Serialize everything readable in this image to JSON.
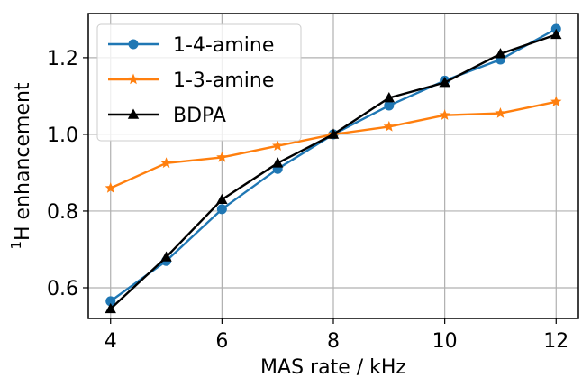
{
  "chart_data": {
    "type": "line",
    "xlabel": "MAS rate / kHz",
    "ylabel_sup": "1",
    "ylabel": "H enhancement",
    "xlim": [
      3.6,
      12.4
    ],
    "ylim": [
      0.52,
      1.315
    ],
    "xticks": [
      4,
      6,
      8,
      10,
      12
    ],
    "xtick_labels": [
      "4",
      "6",
      "8",
      "10",
      "12"
    ],
    "yticks": [
      0.6,
      0.8,
      1.0,
      1.2
    ],
    "ytick_labels": [
      "0.6",
      "0.8",
      "1.0",
      "1.2"
    ],
    "grid": true,
    "legend_position": "top-left",
    "series": [
      {
        "name": "1-4-amine",
        "color": "#1f77b4",
        "marker": "circle",
        "x": [
          4,
          5,
          6,
          7,
          8,
          9,
          10,
          11,
          12
        ],
        "y": [
          0.565,
          0.67,
          0.805,
          0.91,
          1.0,
          1.075,
          1.14,
          1.195,
          1.275
        ]
      },
      {
        "name": "1-3-amine",
        "color": "#ff7f0e",
        "marker": "star",
        "x": [
          4,
          5,
          6,
          7,
          8,
          9,
          10,
          11,
          12
        ],
        "y": [
          0.86,
          0.925,
          0.94,
          0.97,
          1.0,
          1.02,
          1.05,
          1.055,
          1.085
        ]
      },
      {
        "name": "BDPA",
        "color": "#000000",
        "marker": "triangle",
        "x": [
          4,
          5,
          6,
          7,
          8,
          9,
          10,
          11,
          12
        ],
        "y": [
          0.545,
          0.68,
          0.83,
          0.925,
          1.0,
          1.095,
          1.135,
          1.21,
          1.26
        ]
      }
    ]
  }
}
